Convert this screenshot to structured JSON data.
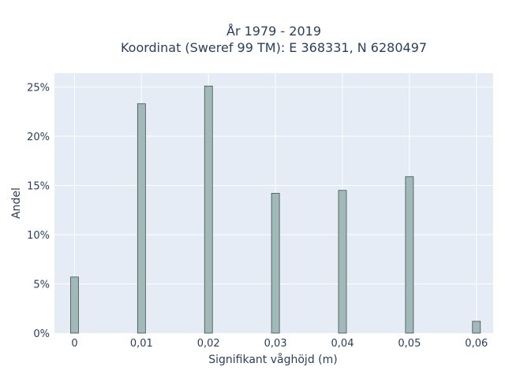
{
  "chart_data": {
    "type": "bar",
    "title_lines": [
      "År 1979 - 2019",
      "Koordinat (Sweref 99 TM): E 368331, N 6280497"
    ],
    "xlabel": "Signifikant våghöjd (m)",
    "ylabel": "Andel",
    "x": [
      0,
      0.01,
      0.02,
      0.03,
      0.04,
      0.05,
      0.06
    ],
    "values": [
      5.7,
      23.3,
      25.1,
      14.2,
      14.5,
      15.9,
      1.2
    ],
    "x_tick_labels": [
      "0",
      "0,01",
      "0,02",
      "0,03",
      "0,04",
      "0,05",
      "0,06"
    ],
    "y_tick_labels": [
      "0%",
      "5%",
      "10%",
      "15%",
      "20%",
      "25%"
    ],
    "y_ticks": [
      0,
      5,
      10,
      15,
      20,
      25
    ],
    "xlim": [
      -0.003,
      0.0625
    ],
    "ylim": [
      0,
      26.4
    ],
    "grid": true,
    "colors": {
      "plot_bg": "#e5ecf6",
      "bar_fill": "#a2b9b9",
      "bar_stroke": "#3f4f4f",
      "grid": "#ffffff",
      "text": "#2a3f5f"
    }
  }
}
